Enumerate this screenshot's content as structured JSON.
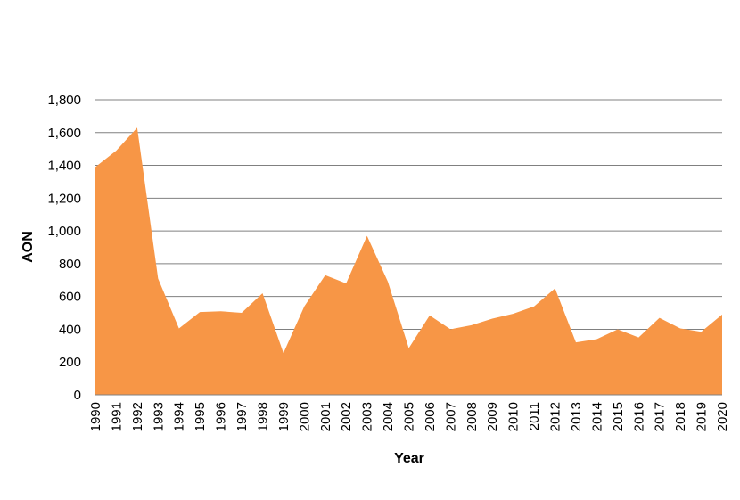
{
  "chart_data": {
    "type": "area",
    "title": "",
    "xlabel": "Year",
    "ylabel": "AON",
    "x": [
      "1990",
      "1991",
      "1992",
      "1993",
      "1994",
      "1995",
      "1996",
      "1997",
      "1998",
      "1999",
      "2000",
      "2001",
      "2002",
      "2003",
      "2004",
      "2005",
      "2006",
      "2007",
      "2008",
      "2009",
      "2010",
      "2011",
      "2012",
      "2013",
      "2014",
      "2015",
      "2016",
      "2017",
      "2018",
      "2019",
      "2020"
    ],
    "series": [
      {
        "values": [
          1390,
          1490,
          1630,
          710,
          405,
          505,
          510,
          500,
          620,
          255,
          540,
          730,
          680,
          970,
          690,
          285,
          485,
          400,
          425,
          465,
          495,
          540,
          650,
          320,
          340,
          400,
          350,
          470,
          405,
          385,
          490
        ]
      }
    ],
    "ylim": [
      0,
      1800
    ],
    "yticks": [
      0,
      200,
      400,
      600,
      800,
      1000,
      1200,
      1400,
      1600,
      1800
    ],
    "ytick_labels": [
      "0",
      "200",
      "400",
      "600",
      "800",
      "1,000",
      "1,200",
      "1,400",
      "1,600",
      "1,800"
    ],
    "grid": true,
    "legend": "none",
    "colors": {
      "fill": "#F79646",
      "grid": "#808080",
      "axis": "#808080"
    }
  }
}
